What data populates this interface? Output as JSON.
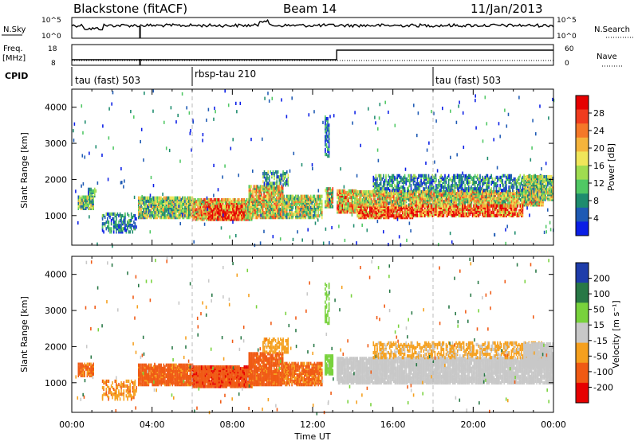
{
  "header": {
    "station": "Blackstone (fitACF)",
    "beam": "Beam 14",
    "date": "11/Jan/2013"
  },
  "status_panels": {
    "nsky": {
      "left_label": "N.Sky",
      "right_label": "N.Search",
      "ticks": [
        "10^5",
        "10^0"
      ]
    },
    "freq": {
      "left_label_1": "Freq.",
      "left_label_2": "[MHz]",
      "right_label": "Nave",
      "left_ticks": [
        "18",
        "8"
      ],
      "right_ticks": [
        "60",
        "0"
      ]
    },
    "cpid": {
      "label": "CPID",
      "segments": [
        {
          "start_hour": 0,
          "text": "tau (fast) 503"
        },
        {
          "start_hour": 6,
          "text": "rbsp-tau 210"
        },
        {
          "start_hour": 18,
          "text": "tau (fast) 503"
        }
      ]
    }
  },
  "chart_data": [
    {
      "type": "heatmap",
      "title": "",
      "xlabel": "Time UT",
      "ylabel": "Slant Range [km]",
      "quantity": "Power",
      "colorbar_label": "Power [dB]",
      "colorbar_ticks": [
        "28",
        "24",
        "20",
        "16",
        "12",
        "8",
        "4"
      ],
      "xlim_hours": [
        0,
        24
      ],
      "ylim_km": [
        180,
        4500
      ],
      "x_ticks": [
        "00:00",
        "04:00",
        "08:00",
        "12:00",
        "16:00",
        "20:00",
        "00:00"
      ],
      "y_ticks": [
        1000,
        2000,
        3000,
        4000
      ],
      "colors": [
        "#0a1ee6",
        "#1e5ab4",
        "#1e8c6e",
        "#50c864",
        "#a0dc50",
        "#f0e65a",
        "#f5b43c",
        "#f57828",
        "#f03c1e",
        "#e60000"
      ],
      "vmin": 0,
      "vmax": 32,
      "bands": [
        {
          "t0": 0.3,
          "t1": 1.1,
          "r0": 1150,
          "r1": 1500,
          "v": 13,
          "dens": 0.85
        },
        {
          "t0": 0.8,
          "t1": 1.2,
          "r0": 1500,
          "r1": 1700,
          "v": 8,
          "dens": 0.6
        },
        {
          "t0": 1.5,
          "t1": 3.2,
          "r0": 500,
          "r1": 1000,
          "v": 7,
          "dens": 0.45
        },
        {
          "t0": 3.3,
          "t1": 6.0,
          "r0": 900,
          "r1": 1450,
          "v": 14,
          "dens": 0.85
        },
        {
          "t0": 6.0,
          "t1": 9.0,
          "r0": 850,
          "r1": 1400,
          "v": 19,
          "dens": 0.9
        },
        {
          "t0": 6.8,
          "t1": 8.6,
          "r0": 850,
          "r1": 1250,
          "v": 27,
          "dens": 0.85
        },
        {
          "t0": 8.8,
          "t1": 10.5,
          "r0": 900,
          "r1": 1800,
          "v": 18,
          "dens": 0.8
        },
        {
          "t0": 9.5,
          "t1": 10.8,
          "r0": 1800,
          "r1": 2200,
          "v": 9,
          "dens": 0.5
        },
        {
          "t0": 10.5,
          "t1": 12.5,
          "r0": 900,
          "r1": 1500,
          "v": 15,
          "dens": 0.75
        },
        {
          "t0": 12.6,
          "t1": 13.0,
          "r0": 1200,
          "r1": 1700,
          "v": 17,
          "dens": 0.8
        },
        {
          "t0": 12.6,
          "t1": 12.8,
          "r0": 2600,
          "r1": 3700,
          "v": 6,
          "dens": 0.45
        },
        {
          "t0": 13.2,
          "t1": 14.2,
          "r0": 1050,
          "r1": 1650,
          "v": 20,
          "dens": 0.85
        },
        {
          "t0": 14.2,
          "t1": 17.0,
          "r0": 900,
          "r1": 1250,
          "v": 27,
          "dens": 0.85
        },
        {
          "t0": 14.2,
          "t1": 23.5,
          "r0": 1250,
          "r1": 1650,
          "v": 17,
          "dens": 0.85
        },
        {
          "t0": 17.0,
          "t1": 22.5,
          "r0": 950,
          "r1": 1250,
          "v": 26,
          "dens": 0.8
        },
        {
          "t0": 15.0,
          "t1": 23.5,
          "r0": 1650,
          "r1": 2100,
          "v": 8,
          "dens": 0.5
        },
        {
          "t0": 22.5,
          "t1": 24.0,
          "r0": 1400,
          "r1": 2050,
          "v": 14,
          "dens": 0.85
        }
      ]
    },
    {
      "type": "heatmap",
      "title": "",
      "xlabel": "Time UT",
      "ylabel": "Slant Range [km]",
      "quantity": "Velocity",
      "colorbar_label": "Velocity [m s⁻¹]",
      "colorbar_ticks": [
        "200",
        "100",
        "50",
        "15",
        "-15",
        "-50",
        "-100",
        "-200"
      ],
      "xlim_hours": [
        0,
        24
      ],
      "ylim_km": [
        180,
        4500
      ],
      "x_ticks": [
        "00:00",
        "04:00",
        "08:00",
        "12:00",
        "16:00",
        "20:00",
        "00:00"
      ],
      "y_ticks": [
        1000,
        2000,
        3000,
        4000
      ],
      "colors": [
        "#e60000",
        "#f05a14",
        "#f5a01e",
        "#c8c8c8",
        "#78d23c",
        "#287846",
        "#1e3caa"
      ],
      "level_values": [
        -250,
        -100,
        -50,
        -15,
        15,
        50,
        100,
        250
      ],
      "bands": [
        {
          "t0": 0.3,
          "t1": 1.1,
          "r0": 1150,
          "r1": 1500,
          "v": -60,
          "dens": 0.8
        },
        {
          "t0": 1.5,
          "t1": 3.2,
          "r0": 500,
          "r1": 1000,
          "v": -40,
          "dens": 0.4
        },
        {
          "t0": 3.3,
          "t1": 6.0,
          "r0": 900,
          "r1": 1450,
          "v": -70,
          "dens": 0.85
        },
        {
          "t0": 6.0,
          "t1": 9.0,
          "r0": 850,
          "r1": 1400,
          "v": -80,
          "dens": 0.9
        },
        {
          "t0": 8.8,
          "t1": 10.5,
          "r0": 900,
          "r1": 1800,
          "v": -70,
          "dens": 0.8
        },
        {
          "t0": 9.5,
          "t1": 10.8,
          "r0": 1800,
          "r1": 2200,
          "v": -30,
          "dens": 0.5
        },
        {
          "t0": 10.5,
          "t1": 12.5,
          "r0": 900,
          "r1": 1500,
          "v": -60,
          "dens": 0.75
        },
        {
          "t0": 12.6,
          "t1": 13.0,
          "r0": 1200,
          "r1": 1700,
          "v": 30,
          "dens": 0.8
        },
        {
          "t0": 12.6,
          "t1": 12.8,
          "r0": 2600,
          "r1": 3700,
          "v": 30,
          "dens": 0.45
        },
        {
          "t0": 13.2,
          "t1": 24.0,
          "r0": 950,
          "r1": 1650,
          "v": 0,
          "dens": 0.85
        },
        {
          "t0": 15.0,
          "t1": 23.5,
          "r0": 1650,
          "r1": 2100,
          "v": -20,
          "dens": 0.45
        },
        {
          "t0": 22.5,
          "t1": 24.0,
          "r0": 1400,
          "r1": 2050,
          "v": 5,
          "dens": 0.85
        }
      ]
    }
  ]
}
